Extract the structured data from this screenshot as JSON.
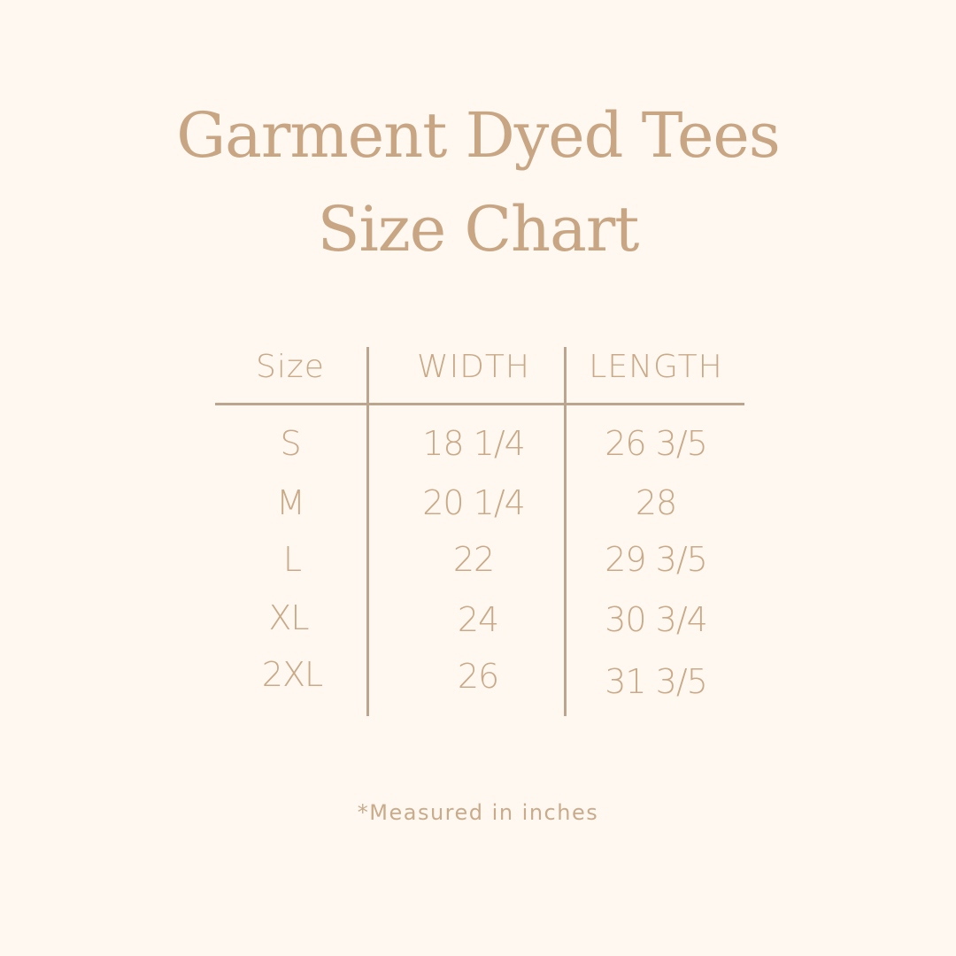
{
  "title": {
    "line1": "Garment Dyed Tees",
    "line2": "Size Chart"
  },
  "table": {
    "headers": [
      "Size",
      "WIDTH",
      "LENGTH"
    ],
    "rows": [
      [
        "S",
        "18 1/4",
        "26 3/5"
      ],
      [
        "M",
        "20 1/4",
        "28"
      ],
      [
        "L",
        "22",
        "29 3/5"
      ],
      [
        "XL",
        "24",
        "30 3/4"
      ],
      [
        "2XL",
        "26",
        "31 3/5"
      ]
    ]
  },
  "footnote": "*Measured in inches",
  "colors": {
    "background": "#fef8f0",
    "text": "#c8a886",
    "lines": "#bba58f"
  }
}
